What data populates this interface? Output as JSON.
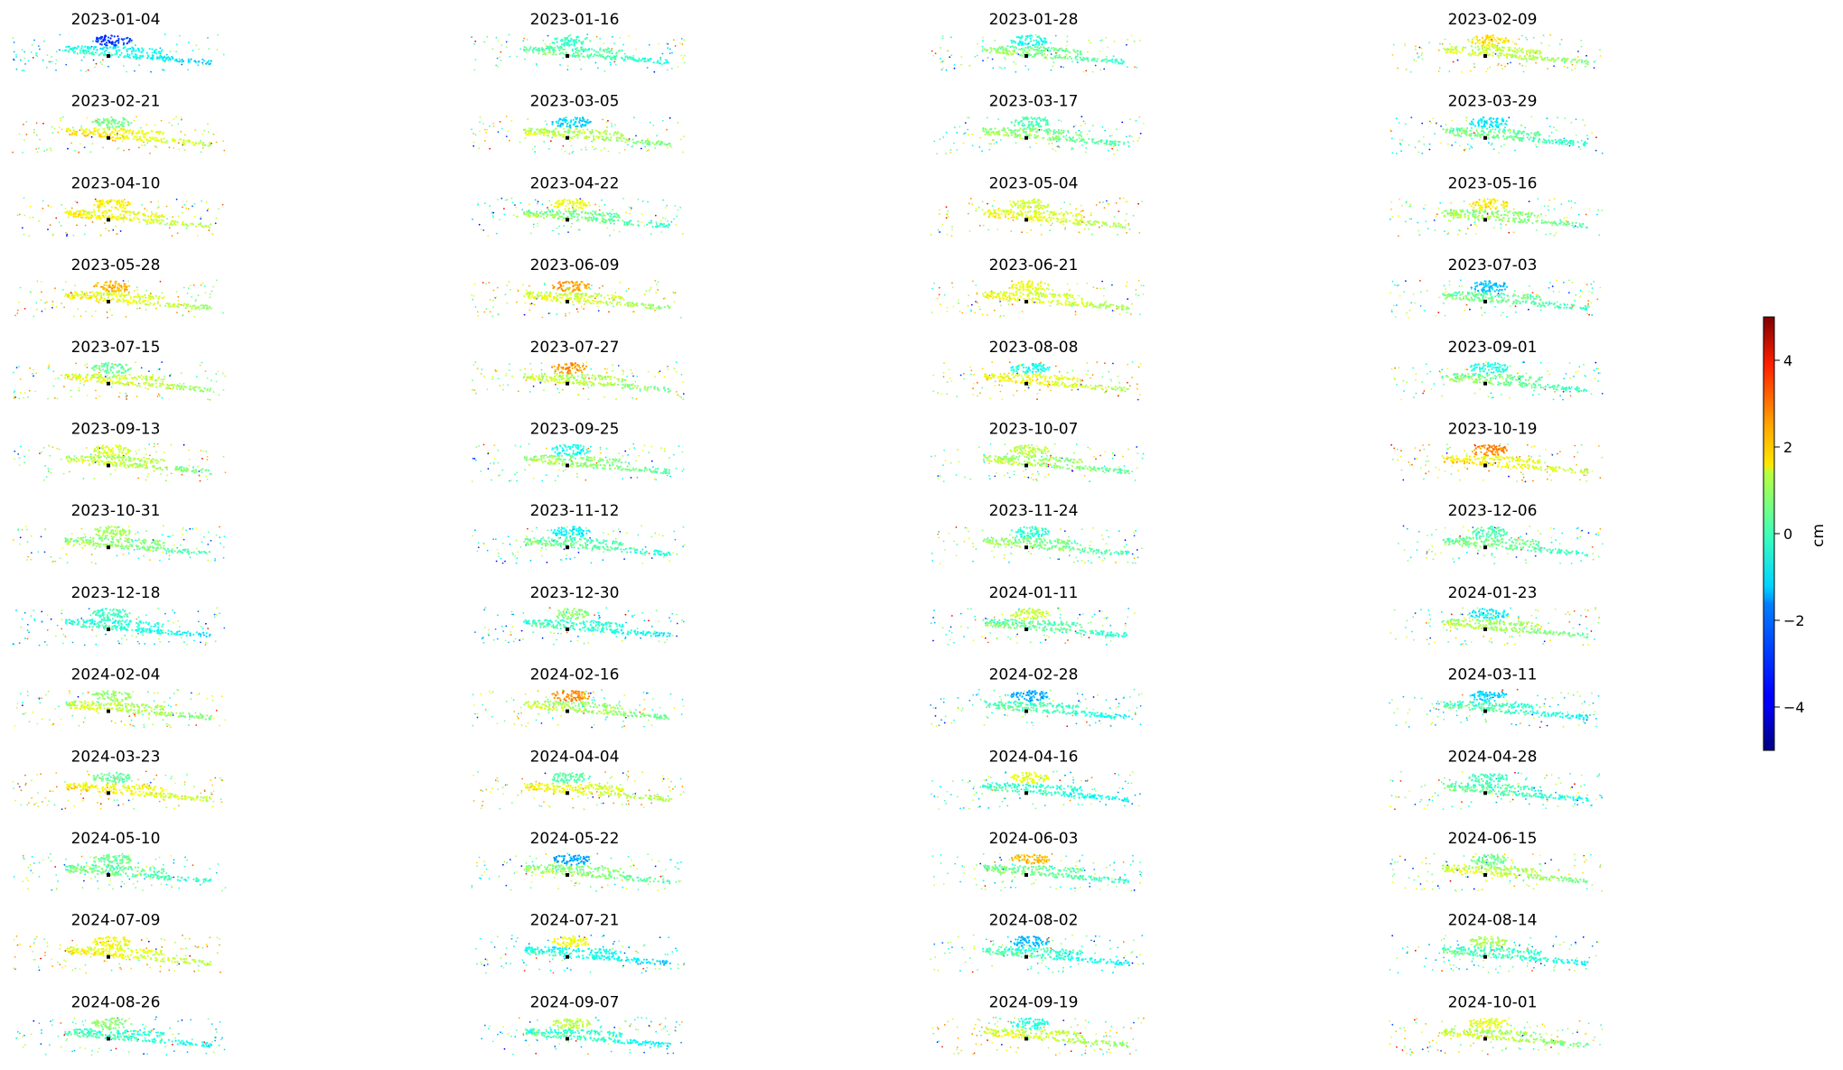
{
  "chart_data": {
    "type": "scatter",
    "panels": [
      "2023-01-04",
      "2023-01-16",
      "2023-01-28",
      "2023-02-09",
      "2023-02-21",
      "2023-03-05",
      "2023-03-17",
      "2023-03-29",
      "2023-04-10",
      "2023-04-22",
      "2023-05-04",
      "2023-05-16",
      "2023-05-28",
      "2023-06-09",
      "2023-06-21",
      "2023-07-03",
      "2023-07-15",
      "2023-07-27",
      "2023-08-08",
      "2023-09-01",
      "2023-09-13",
      "2023-09-25",
      "2023-10-07",
      "2023-10-19",
      "2023-10-31",
      "2023-11-12",
      "2023-11-24",
      "2023-12-06",
      "2023-12-18",
      "2023-12-30",
      "2024-01-11",
      "2024-01-23",
      "2024-02-04",
      "2024-02-16",
      "2024-02-28",
      "2024-03-11",
      "2024-03-23",
      "2024-04-04",
      "2024-04-16",
      "2024-04-28",
      "2024-05-10",
      "2024-05-22",
      "2024-06-03",
      "2024-06-15",
      "2024-07-09",
      "2024-07-21",
      "2024-08-02",
      "2024-08-14",
      "2024-08-26",
      "2024-09-07",
      "2024-09-19",
      "2024-10-01"
    ],
    "colorbar": {
      "label": "cm",
      "range": [
        -5,
        5
      ],
      "ticks": [
        4,
        2,
        0,
        -2,
        -4
      ],
      "tick_labels": [
        "4",
        "2",
        "0",
        "−2",
        "−4"
      ],
      "colormap": "jet"
    },
    "grid": false,
    "axes": "off",
    "layout": "13 rows x 4 columns of small scatter maps, colorbar on the right"
  }
}
